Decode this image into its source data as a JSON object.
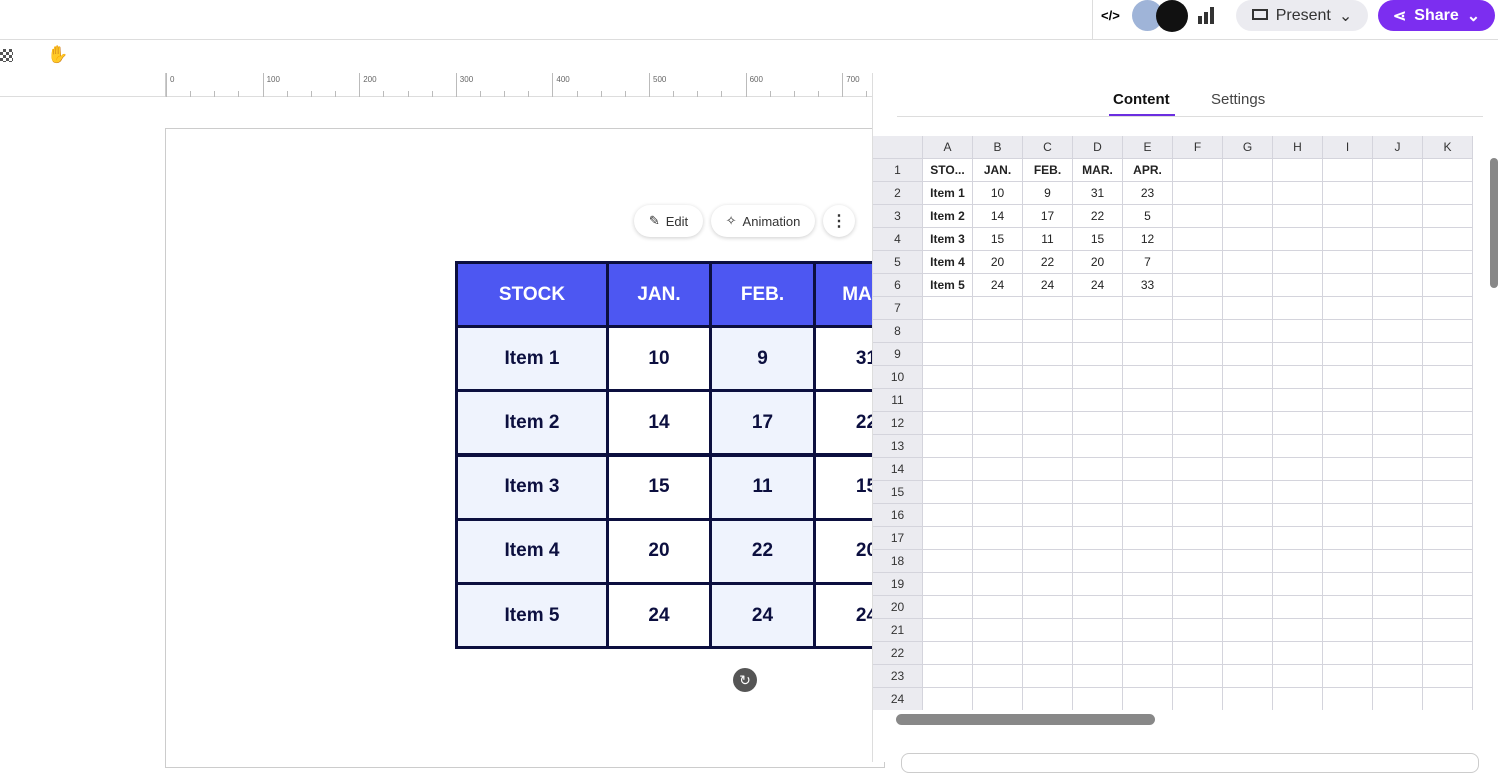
{
  "toolbar": {
    "present": "Present",
    "share": "Share"
  },
  "ruler": {
    "ticks": [
      "0",
      "100",
      "200",
      "300",
      "400",
      "500",
      "600",
      "700"
    ]
  },
  "element_toolbar": {
    "edit": "Edit",
    "animation": "Animation"
  },
  "canvas_table": {
    "first_header": "STOCK"
  },
  "panel": {
    "tabs": [
      "Content",
      "Settings"
    ]
  },
  "sheet": {
    "columns": [
      "A",
      "B",
      "C",
      "D",
      "E",
      "F",
      "G",
      "H",
      "I",
      "J",
      "K"
    ],
    "row_numbers": [
      1,
      2,
      3,
      4,
      5,
      6,
      7,
      8,
      9,
      10,
      11,
      12,
      13,
      14,
      15,
      16,
      17,
      18,
      19,
      20,
      21,
      22,
      23,
      24
    ],
    "rows": [
      [
        "STO...",
        "JAN.",
        "FEB.",
        "MAR.",
        "APR."
      ],
      [
        "Item 1",
        10,
        9,
        31,
        23
      ],
      [
        "Item 2",
        14,
        17,
        22,
        5
      ],
      [
        "Item 3",
        15,
        11,
        15,
        12
      ],
      [
        "Item 4",
        20,
        22,
        20,
        7
      ],
      [
        "Item 5",
        24,
        24,
        24,
        33
      ]
    ]
  }
}
